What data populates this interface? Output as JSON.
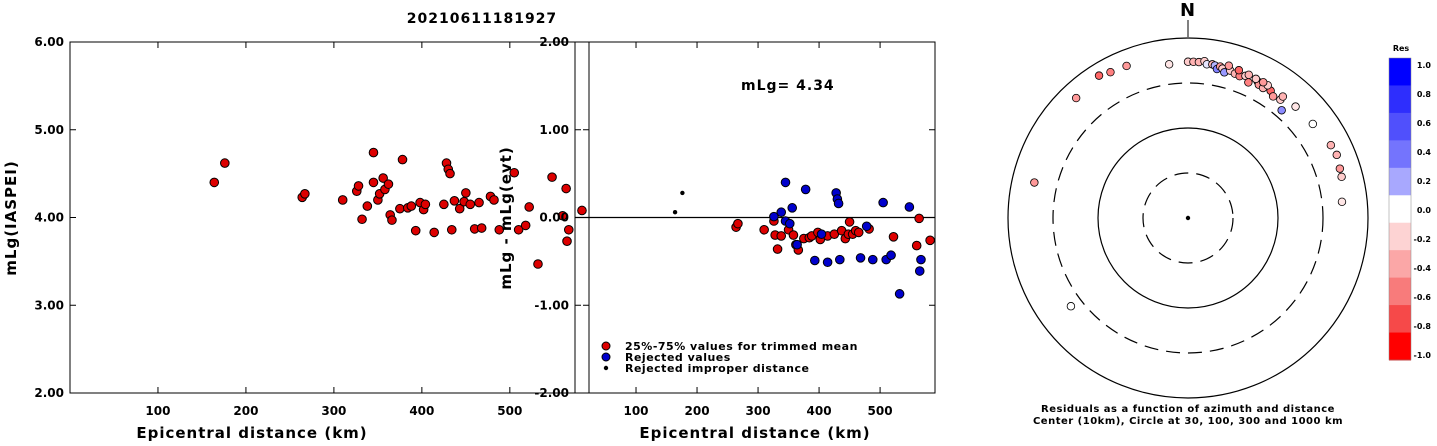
{
  "page_title": "20210611181927",
  "chart_data": [
    {
      "type": "scatter",
      "xlabel": "Epicentral distance (km)",
      "ylabel": "mLg(IASPEI)",
      "xlim": [
        0,
        590
      ],
      "ylim": [
        2.0,
        6.0
      ],
      "x_ticks": [
        "100",
        "200",
        "300",
        "400",
        "500"
      ],
      "x_tick_values": [
        100,
        200,
        300,
        400,
        500
      ],
      "y_ticks": [
        "2.00",
        "3.00",
        "4.00",
        "5.00",
        "6.00"
      ],
      "y_tick_values": [
        2,
        3,
        4,
        5,
        6
      ],
      "point_color": "#dd0000",
      "points": [
        [
          164,
          4.4
        ],
        [
          176,
          4.62
        ],
        [
          264,
          4.23
        ],
        [
          267,
          4.27
        ],
        [
          310,
          4.2
        ],
        [
          326,
          4.3
        ],
        [
          328,
          4.36
        ],
        [
          332,
          3.98
        ],
        [
          338,
          4.13
        ],
        [
          345,
          4.74
        ],
        [
          345,
          4.4
        ],
        [
          350,
          4.2
        ],
        [
          352,
          4.27
        ],
        [
          356,
          4.45
        ],
        [
          358,
          4.32
        ],
        [
          362,
          4.38
        ],
        [
          364,
          4.03
        ],
        [
          366,
          3.97
        ],
        [
          375,
          4.1
        ],
        [
          378,
          4.66
        ],
        [
          384,
          4.11
        ],
        [
          388,
          4.13
        ],
        [
          393,
          3.85
        ],
        [
          398,
          4.17
        ],
        [
          402,
          4.09
        ],
        [
          404,
          4.15
        ],
        [
          414,
          3.83
        ],
        [
          425,
          4.15
        ],
        [
          428,
          4.62
        ],
        [
          430,
          4.55
        ],
        [
          432,
          4.5
        ],
        [
          434,
          3.86
        ],
        [
          437,
          4.19
        ],
        [
          443,
          4.1
        ],
        [
          448,
          4.18
        ],
        [
          450,
          4.28
        ],
        [
          455,
          4.15
        ],
        [
          460,
          3.87
        ],
        [
          465,
          4.17
        ],
        [
          468,
          3.88
        ],
        [
          478,
          4.24
        ],
        [
          482,
          4.2
        ],
        [
          488,
          3.86
        ],
        [
          505,
          4.51
        ],
        [
          510,
          3.86
        ],
        [
          518,
          3.91
        ],
        [
          522,
          4.12
        ],
        [
          532,
          3.47
        ],
        [
          548,
          4.46
        ],
        [
          560,
          4.02
        ],
        [
          564,
          4.33
        ],
        [
          565,
          3.73
        ],
        [
          567,
          3.86
        ],
        [
          582,
          4.08
        ]
      ]
    },
    {
      "type": "scatter",
      "xlabel": "Epicentral distance (km)",
      "ylabel": "mLg - mLg(evt)",
      "annotation": "mLg= 4.34",
      "xlim": [
        0,
        590
      ],
      "ylim": [
        -2.0,
        2.0
      ],
      "x_ticks": [
        "100",
        "200",
        "300",
        "400",
        "500"
      ],
      "x_tick_values": [
        100,
        200,
        300,
        400,
        500
      ],
      "y_ticks": [
        "-2.00",
        "-1.00",
        "0.00",
        "1.00",
        "2.00"
      ],
      "y_tick_values": [
        -2,
        -1,
        0,
        1,
        2
      ],
      "reference_line_y": 0,
      "series": [
        {
          "name": "25%-75% values for trimmed mean",
          "color": "#dd0000",
          "points": [
            [
              264,
              -0.11
            ],
            [
              267,
              -0.07
            ],
            [
              310,
              -0.14
            ],
            [
              326,
              -0.04
            ],
            [
              328,
              -0.2
            ],
            [
              332,
              -0.36
            ],
            [
              338,
              -0.21
            ],
            [
              350,
              -0.14
            ],
            [
              358,
              -0.2
            ],
            [
              362,
              -0.31
            ],
            [
              366,
              -0.37
            ],
            [
              375,
              -0.24
            ],
            [
              384,
              -0.23
            ],
            [
              388,
              -0.21
            ],
            [
              398,
              -0.17
            ],
            [
              402,
              -0.25
            ],
            [
              414,
              -0.21
            ],
            [
              425,
              -0.19
            ],
            [
              437,
              -0.15
            ],
            [
              443,
              -0.24
            ],
            [
              448,
              -0.19
            ],
            [
              450,
              -0.05
            ],
            [
              455,
              -0.19
            ],
            [
              460,
              -0.15
            ],
            [
              465,
              -0.17
            ],
            [
              482,
              -0.13
            ],
            [
              522,
              -0.22
            ],
            [
              560,
              -0.32
            ],
            [
              564,
              -0.01
            ],
            [
              582,
              -0.26
            ]
          ]
        },
        {
          "name": "Rejected values",
          "color": "#0000cc",
          "points": [
            [
              326,
              0.01
            ],
            [
              338,
              0.06
            ],
            [
              345,
              0.4
            ],
            [
              345,
              -0.04
            ],
            [
              352,
              -0.07
            ],
            [
              356,
              0.11
            ],
            [
              364,
              -0.31
            ],
            [
              378,
              0.32
            ],
            [
              393,
              -0.49
            ],
            [
              404,
              -0.19
            ],
            [
              414,
              -0.51
            ],
            [
              428,
              0.28
            ],
            [
              430,
              0.21
            ],
            [
              432,
              0.16
            ],
            [
              434,
              -0.48
            ],
            [
              468,
              -0.46
            ],
            [
              478,
              -0.1
            ],
            [
              488,
              -0.48
            ],
            [
              505,
              0.17
            ],
            [
              510,
              -0.48
            ],
            [
              518,
              -0.43
            ],
            [
              532,
              -0.87
            ],
            [
              548,
              0.12
            ],
            [
              565,
              -0.61
            ],
            [
              567,
              -0.48
            ]
          ]
        },
        {
          "name": "Rejected improper distance",
          "color": "#000000",
          "points": [
            [
              164,
              0.06
            ],
            [
              176,
              0.28
            ]
          ]
        }
      ]
    },
    {
      "type": "polar-scatter",
      "north_label": "N",
      "caption_line1": "Residuals as a function of azimuth and distance",
      "caption_line2": "Center (10km), Circle at 30, 100, 300 and 1000 km",
      "colorbar_title": "Res",
      "colorbar_labels": [
        "1.0",
        "0.8",
        "0.6",
        "0.4",
        "0.2",
        "0.0",
        "-0.2",
        "-0.4",
        "-0.6",
        "-0.8",
        "-1.0"
      ],
      "colorbar_colors": [
        "#0000ff",
        "#2e2efd",
        "#5050fc",
        "#7474fd",
        "#a8a8fe",
        "#ffffff",
        "#fdd3d3",
        "#fba7a7",
        "#f87b7b",
        "#f64949",
        "#ff0000"
      ],
      "rings_km": [
        30,
        100,
        300,
        1000
      ],
      "stations": [
        {
          "az": -43,
          "dist": 660,
          "res": -0.4
        },
        {
          "az": -32,
          "dist": 730,
          "res": -0.6
        },
        {
          "az": -28,
          "dist": 680,
          "res": -0.5
        },
        {
          "az": -22,
          "dist": 660,
          "res": -0.4
        },
        {
          "az": -7,
          "dist": 520,
          "res": -0.1
        },
        {
          "az": 0,
          "dist": 540,
          "res": -0.2
        },
        {
          "az": 2,
          "dist": 540,
          "res": -0.3
        },
        {
          "az": 4,
          "dist": 540,
          "res": -0.3
        },
        {
          "az": 6,
          "dist": 560,
          "res": -0.2
        },
        {
          "az": 7,
          "dist": 520,
          "res": 0.1
        },
        {
          "az": 9,
          "dist": 530,
          "res": -0.3
        },
        {
          "az": 10,
          "dist": 520,
          "res": 0.3
        },
        {
          "az": 11,
          "dist": 480,
          "res": 0.5
        },
        {
          "az": 12,
          "dist": 520,
          "res": -0.4
        },
        {
          "az": 13,
          "dist": 500,
          "res": -0.2
        },
        {
          "az": 14,
          "dist": 460,
          "res": 0.4
        },
        {
          "az": 16,
          "dist": 500,
          "res": -0.2
        },
        {
          "az": 18,
          "dist": 480,
          "res": -0.3
        },
        {
          "az": 20,
          "dist": 470,
          "res": -0.5
        },
        {
          "az": 22,
          "dist": 500,
          "res": -0.2
        },
        {
          "az": 24,
          "dist": 440,
          "res": -0.5
        },
        {
          "az": 27,
          "dist": 500,
          "res": -0.7
        },
        {
          "az": 28,
          "dist": 470,
          "res": -0.4
        },
        {
          "az": 30,
          "dist": 460,
          "res": -0.3
        },
        {
          "az": 33,
          "dist": 480,
          "res": -0.6
        },
        {
          "az": 35,
          "dist": 440,
          "res": -0.4
        },
        {
          "az": 38,
          "dist": 460,
          "res": -0.2
        },
        {
          "az": 41,
          "dist": 380,
          "res": 0.45
        },
        {
          "az": 44,
          "dist": 520,
          "res": -0.1
        },
        {
          "az": 53,
          "dist": 540,
          "res": 0.0
        },
        {
          "az": 63,
          "dist": 600,
          "res": -0.3
        },
        {
          "az": 67,
          "dist": 620,
          "res": -0.3
        },
        {
          "az": 72,
          "dist": 590,
          "res": -0.4
        },
        {
          "az": 75,
          "dist": 580,
          "res": -0.2
        },
        {
          "az": 84,
          "dist": 520,
          "res": -0.1
        },
        {
          "az": 233,
          "dist": 420,
          "res": 0.0
        },
        {
          "az": 283,
          "dist": 560,
          "res": -0.4
        },
        {
          "az": 38,
          "dist": 510,
          "res": -0.3
        },
        {
          "az": 31,
          "dist": 520,
          "res": -0.2
        },
        {
          "az": 15,
          "dist": 560,
          "res": -0.4
        },
        {
          "az": 19,
          "dist": 540,
          "res": -0.6
        },
        {
          "az": 23,
          "dist": 530,
          "res": -0.3
        },
        {
          "az": 26,
          "dist": 520,
          "res": -0.2
        },
        {
          "az": 29,
          "dist": 525,
          "res": -0.4
        }
      ]
    }
  ]
}
